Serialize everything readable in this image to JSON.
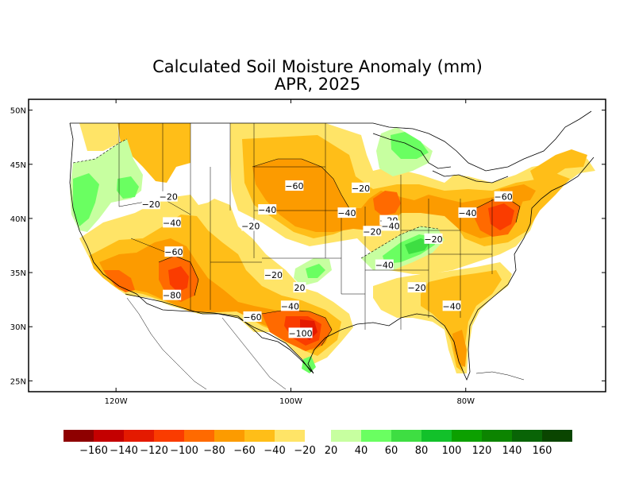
{
  "title": "Calculated Soil Moisture Anomaly (mm)",
  "subtitle": "APR, 2025",
  "lat_ticks": [
    {
      "value": 50,
      "label": "50N"
    },
    {
      "value": 45,
      "label": "45N"
    },
    {
      "value": 40,
      "label": "40N"
    },
    {
      "value": 35,
      "label": "35N"
    },
    {
      "value": 30,
      "label": "30N"
    },
    {
      "value": 25,
      "label": "25N"
    }
  ],
  "lon_ticks": [
    {
      "value": -120,
      "label": "120W"
    },
    {
      "value": -100,
      "label": "100W"
    },
    {
      "value": -80,
      "label": "80W"
    }
  ],
  "map_extent": {
    "lon_min": -130,
    "lon_max": -64,
    "lat_min": 24,
    "lat_max": 51
  },
  "contour_labels": [
    {
      "text": "-60",
      "lon": -99.6,
      "lat": 43.0
    },
    {
      "text": "-40",
      "lon": -102.7,
      "lat": 40.8
    },
    {
      "text": "-20",
      "lon": -104.6,
      "lat": 39.3
    },
    {
      "text": "-40",
      "lon": -93.6,
      "lat": 40.5
    },
    {
      "text": "-20",
      "lon": -92.0,
      "lat": 42.8
    },
    {
      "text": "-20",
      "lon": -90.7,
      "lat": 38.8
    },
    {
      "text": "-20",
      "lon": -88.8,
      "lat": 39.8
    },
    {
      "text": "-40",
      "lon": -88.6,
      "lat": 39.3
    },
    {
      "text": "-20",
      "lon": -83.7,
      "lat": 38.1
    },
    {
      "text": "-40",
      "lon": -79.8,
      "lat": 40.5
    },
    {
      "text": "-60",
      "lon": -75.7,
      "lat": 42.0
    },
    {
      "text": "-20",
      "lon": -116.0,
      "lat": 41.3
    },
    {
      "text": "-20",
      "lon": -114.0,
      "lat": 42.0
    },
    {
      "text": "-40",
      "lon": -113.6,
      "lat": 39.6
    },
    {
      "text": "-60",
      "lon": -113.4,
      "lat": 36.9
    },
    {
      "text": "-80",
      "lon": -113.6,
      "lat": 32.9
    },
    {
      "text": "-20",
      "lon": -102.0,
      "lat": 34.8
    },
    {
      "text": "20",
      "lon": -99.0,
      "lat": 33.6
    },
    {
      "text": "-40",
      "lon": -100.1,
      "lat": 31.9
    },
    {
      "text": "-60",
      "lon": -104.4,
      "lat": 30.9
    },
    {
      "text": "-100",
      "lon": -98.9,
      "lat": 29.4
    },
    {
      "text": "-40",
      "lon": -89.3,
      "lat": 35.7
    },
    {
      "text": "-20",
      "lon": -85.6,
      "lat": 33.6
    },
    {
      "text": "-40",
      "lon": -81.6,
      "lat": 31.9
    }
  ],
  "legend": {
    "neg_colors": [
      "#8e0000",
      "#c40000",
      "#e41a00",
      "#fa3c00",
      "#ff6a00",
      "#fc9b00",
      "#ffbe18",
      "#ffe467"
    ],
    "pos_colors": [
      "#c7ffa0",
      "#6aff61",
      "#3ede42",
      "#12c12a",
      "#0ca000",
      "#0c8400",
      "#096406",
      "#0a4500"
    ],
    "neg_labels": [
      "−160",
      "−140",
      "−120",
      "−100",
      "−80",
      "−60",
      "−40",
      "−20"
    ],
    "pos_labels": [
      "20",
      "40",
      "60",
      "80",
      "100",
      "120",
      "140",
      "160"
    ]
  }
}
